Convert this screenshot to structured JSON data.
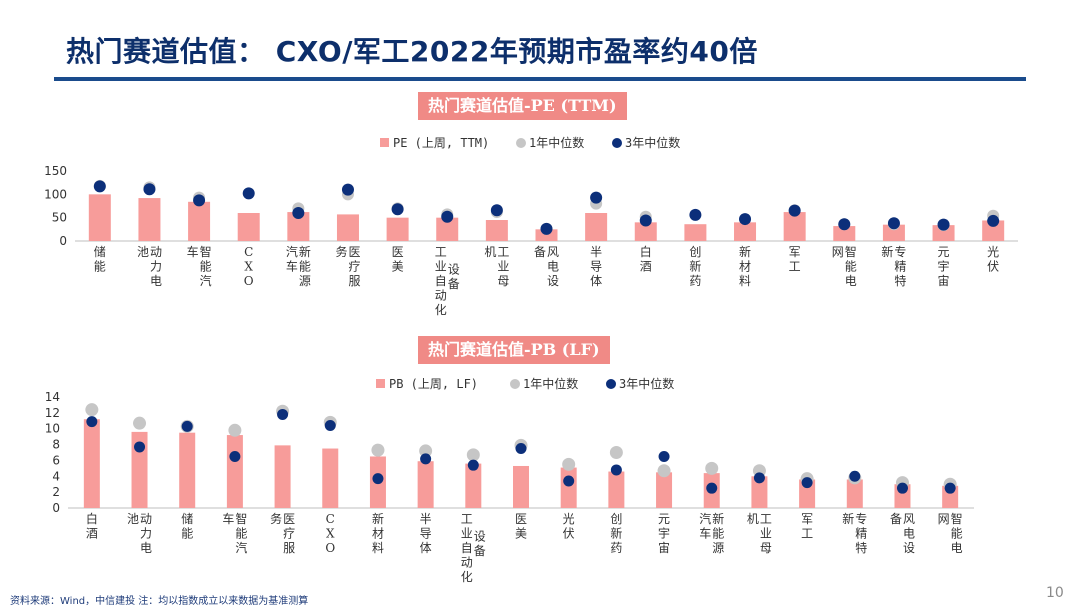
{
  "title": "热门赛道估值： CXO/军工2022年预期市盈率约40倍",
  "colors": {
    "bar": "#f79c9a",
    "median1y": "#c6c6c6",
    "median3y": "#0c2f7a",
    "title_bar": "#f08a86",
    "heading": "#0d2f6b"
  },
  "chart_data": [
    {
      "type": "bar",
      "title": "热门赛道估值-PE (TTM)",
      "legend": [
        "PE (上周, TTM)",
        "1年中位数",
        "3年中位数"
      ],
      "categories": [
        "储能",
        "动力电池",
        "智能汽车",
        "CXO",
        "新能源汽车",
        "医疗服务",
        "医美",
        "工业自动化设备",
        "工业母机",
        "风电设备",
        "半导体",
        "白酒",
        "创新药",
        "新材料",
        "军工",
        "智能电网",
        "专精特新",
        "元宇宙",
        "光伏"
      ],
      "category_lines": [
        [
          "储能"
        ],
        [
          "动力电",
          "池"
        ],
        [
          "智能汽",
          "车"
        ],
        [
          "CXO"
        ],
        [
          "新能源",
          "汽车"
        ],
        [
          "医疗服",
          "务"
        ],
        [
          "医美"
        ],
        [
          "设备",
          "工业自动化"
        ],
        [
          "工业母",
          "机"
        ],
        [
          "风电设",
          "备"
        ],
        [
          "半导体"
        ],
        [
          "白酒"
        ],
        [
          "创新药"
        ],
        [
          "新材料"
        ],
        [
          "军工"
        ],
        [
          "智能电",
          "网"
        ],
        [
          "专精特",
          "新"
        ],
        [
          "元宇宙"
        ],
        [
          "光伏"
        ]
      ],
      "series": [
        {
          "name": "PE (上周, TTM)",
          "values": [
            100,
            92,
            84,
            60,
            62,
            57,
            50,
            50,
            45,
            25,
            60,
            40,
            36,
            40,
            62,
            32,
            35,
            34,
            44
          ]
        },
        {
          "name": "1年中位数",
          "values": [
            118,
            115,
            93,
            null,
            70,
            100,
            70,
            57,
            62,
            26,
            80,
            52,
            null,
            null,
            66,
            36,
            36,
            34,
            54
          ]
        },
        {
          "name": "3年中位数",
          "values": [
            117,
            111,
            87,
            102,
            60,
            110,
            68,
            52,
            66,
            26,
            93,
            44,
            56,
            47,
            65,
            36,
            38,
            35,
            43
          ]
        }
      ],
      "yticks": [
        0,
        50,
        100,
        150
      ],
      "ylim": [
        0,
        150
      ]
    },
    {
      "type": "bar",
      "title": "热门赛道估值-PB (LF)",
      "legend": [
        "PB (上周, LF)",
        "1年中位数",
        "3年中位数"
      ],
      "categories": [
        "白酒",
        "动力电池",
        "储能",
        "智能汽车",
        "医疗服务",
        "CXO",
        "新材料",
        "半导体",
        "工业自动化设备",
        "医美",
        "光伏",
        "创新药",
        "元宇宙",
        "新能源汽车",
        "工业母机",
        "军工",
        "专精特新",
        "风电设备",
        "智能电网"
      ],
      "category_lines": [
        [
          "白酒"
        ],
        [
          "动力电",
          "池"
        ],
        [
          "储能"
        ],
        [
          "智能汽",
          "车"
        ],
        [
          "医疗服",
          "务"
        ],
        [
          "CXO"
        ],
        [
          "新材料"
        ],
        [
          "半导体"
        ],
        [
          "设备",
          "工业自动化"
        ],
        [
          "医美"
        ],
        [
          "光伏"
        ],
        [
          "创新药"
        ],
        [
          "元宇宙"
        ],
        [
          "新能源",
          "汽车"
        ],
        [
          "工业母",
          "机"
        ],
        [
          "军工"
        ],
        [
          "专精特",
          "新"
        ],
        [
          "风电设",
          "备"
        ],
        [
          "智能电",
          "网"
        ]
      ],
      "series": [
        {
          "name": "PB (上周, LF)",
          "values": [
            11.2,
            9.6,
            9.5,
            9.2,
            7.9,
            7.5,
            6.5,
            5.9,
            5.6,
            5.3,
            5.1,
            4.6,
            4.5,
            4.4,
            4.0,
            3.6,
            3.6,
            3.0,
            2.8
          ]
        },
        {
          "name": "1年中位数",
          "values": [
            12.4,
            10.7,
            10.3,
            9.8,
            12.2,
            10.8,
            7.3,
            7.2,
            6.7,
            7.9,
            5.5,
            7.0,
            4.7,
            5.0,
            4.7,
            3.7,
            3.8,
            3.2,
            3.0
          ]
        },
        {
          "name": "3年中位数",
          "values": [
            10.9,
            7.7,
            10.3,
            6.5,
            11.8,
            10.4,
            3.7,
            6.2,
            5.4,
            7.5,
            3.4,
            4.8,
            6.5,
            2.5,
            3.8,
            3.2,
            4.0,
            2.5,
            2.5
          ]
        }
      ],
      "yticks": [
        0,
        2,
        4,
        6,
        8,
        10,
        12,
        14
      ],
      "ylim": [
        0,
        14
      ]
    }
  ],
  "footer": {
    "source": "资料来源：Wind，中信建投 注：均以指数成立以来数据为基准测算",
    "page": "10"
  }
}
